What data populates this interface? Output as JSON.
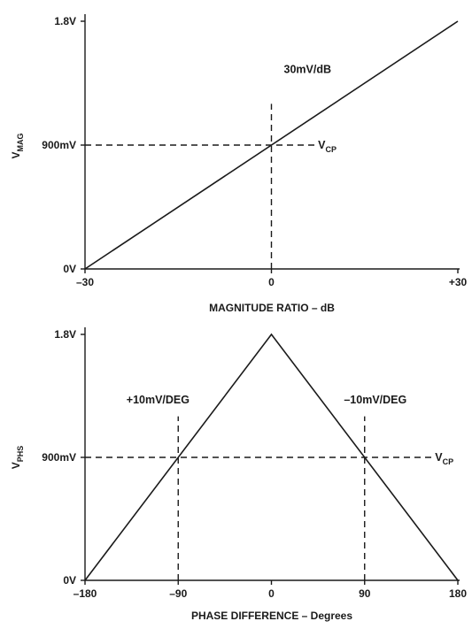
{
  "chart_data": [
    {
      "type": "line",
      "xlabel": "MAGNITUDE RATIO – dB",
      "ylabel": "V",
      "ylabel_sub": "MAG",
      "xlim": [
        -30,
        30
      ],
      "ylim": [
        0,
        1.8
      ],
      "xticks": [
        {
          "value": -30,
          "label": "–30"
        },
        {
          "value": 0,
          "label": "0"
        },
        {
          "value": 30,
          "label": "+30"
        }
      ],
      "yticks": [
        {
          "value": 0,
          "label": "0V"
        },
        {
          "value": 0.9,
          "label": "900mV"
        },
        {
          "value": 1.8,
          "label": "1.8V"
        }
      ],
      "series": [
        {
          "x": [
            -30,
            30
          ],
          "y": [
            0,
            1.8
          ]
        }
      ],
      "annotations": [
        {
          "text": "30mV/dB",
          "x": 2,
          "y": 1.45
        },
        {
          "text": "V",
          "sub": "CP",
          "x": 7.5,
          "y": 0.9
        }
      ],
      "reference_lines": {
        "horizontal": [
          {
            "y": 0.9,
            "from": -30,
            "to": 7
          }
        ],
        "vertical": [
          {
            "x": 0,
            "from": 0,
            "to": 1.2
          }
        ]
      },
      "grid": false
    },
    {
      "type": "line",
      "xlabel": "PHASE DIFFERENCE – Degrees",
      "ylabel": "V",
      "ylabel_sub": "PHS",
      "xlim": [
        -180,
        180
      ],
      "ylim": [
        0,
        1.8
      ],
      "xticks": [
        {
          "value": -180,
          "label": "–180"
        },
        {
          "value": -90,
          "label": "–90"
        },
        {
          "value": 0,
          "label": "0"
        },
        {
          "value": 90,
          "label": "90"
        },
        {
          "value": 180,
          "label": "180"
        }
      ],
      "yticks": [
        {
          "value": 0,
          "label": "0V"
        },
        {
          "value": 0.9,
          "label": "900mV"
        },
        {
          "value": 1.8,
          "label": "1.8V"
        }
      ],
      "series": [
        {
          "x": [
            -180,
            0,
            180
          ],
          "y": [
            0,
            1.8,
            0
          ]
        }
      ],
      "annotations": [
        {
          "text": "+10mV/DEG",
          "x": -140,
          "y": 1.32
        },
        {
          "text": "–10mV/DEG",
          "x": 70,
          "y": 1.32
        },
        {
          "text": "V",
          "sub": "CP",
          "x": 158,
          "y": 0.9
        }
      ],
      "reference_lines": {
        "horizontal": [
          {
            "y": 0.9,
            "from": -180,
            "to": 155
          }
        ],
        "vertical": [
          {
            "x": -90,
            "from": 0,
            "to": 1.2
          },
          {
            "x": 90,
            "from": 0,
            "to": 1.2
          }
        ]
      },
      "grid": false
    }
  ]
}
